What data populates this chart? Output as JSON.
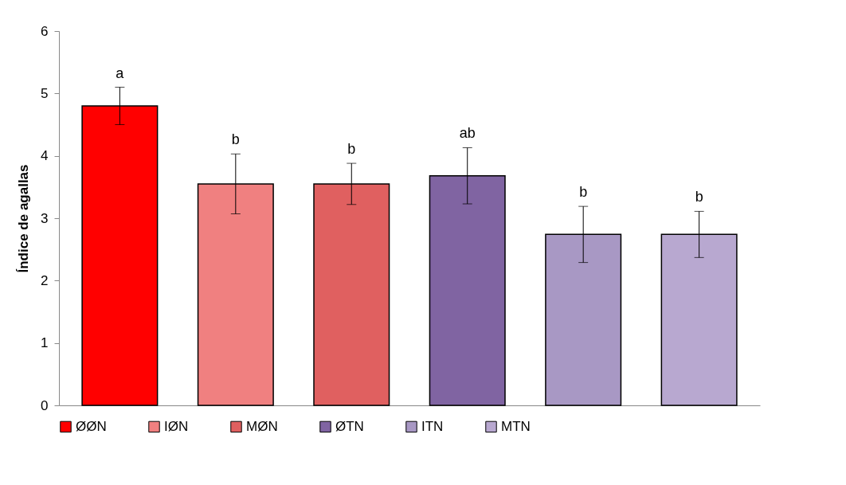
{
  "chart_data": {
    "type": "bar",
    "ylabel": "Índice de agallas",
    "categories": [
      null,
      null,
      null,
      null,
      null,
      null
    ],
    "series": [
      {
        "name": "ØØN",
        "color": "#ff0000",
        "values": [
          4.8,
          null,
          null,
          null,
          null,
          null
        ],
        "errors": [
          0.3,
          null,
          null,
          null,
          null,
          null
        ]
      },
      {
        "name": "IØN",
        "color": "#f08080",
        "values": [
          null,
          3.55,
          null,
          null,
          null,
          null
        ],
        "errors": [
          null,
          0.48,
          null,
          null,
          null,
          null
        ]
      },
      {
        "name": "MØN",
        "color": "#e06060",
        "values": [
          null,
          null,
          3.55,
          null,
          null,
          null
        ],
        "errors": [
          null,
          null,
          0.33,
          null,
          null,
          null
        ]
      },
      {
        "name": "ØTN",
        "color": "#8064a2",
        "values": [
          null,
          null,
          null,
          3.68,
          null,
          null
        ],
        "errors": [
          null,
          null,
          null,
          0.45,
          null,
          null
        ]
      },
      {
        "name": "ITN",
        "color": "#a898c4",
        "values": [
          null,
          null,
          null,
          null,
          2.74,
          null
        ],
        "errors": [
          null,
          null,
          null,
          null,
          0.45,
          null
        ]
      },
      {
        "name": "MTN",
        "color": "#b8a8d0",
        "values": [
          null,
          null,
          null,
          null,
          null,
          2.74
        ],
        "errors": [
          null,
          null,
          null,
          null,
          null,
          0.37
        ]
      }
    ],
    "ylim": [
      0,
      6
    ],
    "yticks": [
      0,
      1,
      2,
      3,
      4,
      5,
      6
    ],
    "grid": false,
    "legend": "bottom",
    "tick_labels": "y",
    "annotations": [
      "a",
      "b",
      "b",
      "ab",
      "b",
      "b"
    ]
  }
}
